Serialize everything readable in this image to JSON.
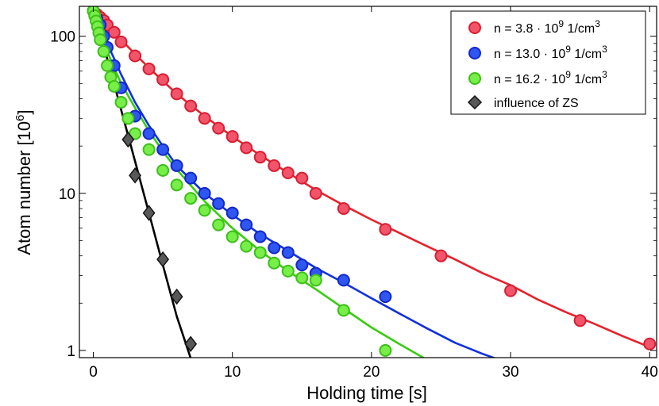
{
  "chart_data": {
    "type": "scatter",
    "title": "",
    "xlabel": "Holding time [s]",
    "ylabel": "Atom number [10",
    "ylabel_sup": "6",
    "ylabel_end": "]",
    "xlim": [
      -1,
      40.5
    ],
    "ylim": [
      0.9,
      155
    ],
    "yscale": "log",
    "grid": false,
    "legend_position": "top-right",
    "x_ticks": [
      0,
      10,
      20,
      30,
      40
    ],
    "x_tick_labels": [
      "0",
      "10",
      "20",
      "30",
      "40"
    ],
    "y_ticks": [
      1,
      10,
      100
    ],
    "y_tick_labels": [
      "1",
      "10",
      "100"
    ],
    "series": [
      {
        "name": "n = 3.8 · 10^9 1/cm^3",
        "legend_prefix": "n = 3.8 · 10",
        "legend_sup1": "9",
        "legend_mid": " 1/cm",
        "legend_sup2": "3",
        "marker": "circle",
        "fill": "#f2546a",
        "stroke": "#d81e33",
        "line_color": "#e8202a",
        "x": [
          0,
          0.25,
          0.5,
          0.75,
          1,
          1.5,
          2,
          3,
          4,
          5,
          6,
          7,
          8,
          9,
          10,
          11,
          12,
          13,
          14,
          15,
          16,
          18,
          21,
          25,
          30,
          35,
          40
        ],
        "y": [
          145,
          138,
          132,
          126,
          118,
          106,
          92,
          75,
          62,
          53,
          43,
          36,
          30,
          26,
          23,
          19.5,
          17,
          15,
          13.5,
          12.5,
          10,
          8,
          5.9,
          4,
          2.4,
          1.55,
          1.1
        ],
        "fit_x": [
          0,
          0.5,
          1,
          2,
          3,
          4,
          5,
          6,
          8,
          10,
          12,
          14,
          16,
          18,
          20,
          22,
          24,
          26,
          28,
          30,
          32,
          34,
          36,
          38,
          40
        ],
        "fit_y": [
          145,
          133,
          120,
          95,
          77,
          63,
          52,
          43,
          31,
          23,
          17.5,
          13.5,
          10.5,
          8.4,
          6.8,
          5.6,
          4.6,
          3.8,
          3.1,
          2.6,
          2.1,
          1.75,
          1.48,
          1.24,
          1.05
        ]
      },
      {
        "name": "n = 13.0 · 10^9 1/cm^3",
        "legend_prefix": "n = 13.0 · 10",
        "legend_sup1": "9",
        "legend_mid": " 1/cm",
        "legend_sup2": "3",
        "marker": "circle",
        "fill": "#2f56f0",
        "stroke": "#1428c8",
        "line_color": "#1030e0",
        "x": [
          0,
          0.25,
          0.5,
          0.75,
          1,
          1.5,
          2,
          3,
          4,
          5,
          6,
          7,
          8,
          9,
          10,
          11,
          12,
          13,
          14,
          15,
          16,
          18,
          21
        ],
        "y": [
          145,
          130,
          118,
          100,
          85,
          65,
          47,
          31,
          24,
          19,
          15,
          12.5,
          10,
          8.6,
          7.5,
          6.3,
          5.3,
          4.5,
          4.2,
          3.5,
          3.1,
          2.8,
          2.2
        ],
        "fit_x": [
          0,
          0.5,
          1,
          1.5,
          2,
          3,
          4,
          5,
          6,
          8,
          10,
          12,
          14,
          16,
          18,
          20,
          22,
          24,
          26,
          28,
          29.7
        ],
        "fit_y": [
          145,
          115,
          90,
          72,
          57,
          38,
          27,
          20,
          15,
          10,
          7.3,
          5.5,
          4.3,
          3.35,
          2.7,
          2.15,
          1.72,
          1.38,
          1.12,
          0.95,
          0.84
        ]
      },
      {
        "name": "n = 16.2 · 10^9 1/cm^3",
        "legend_prefix": "n = 16.2 · 10",
        "legend_sup1": "9",
        "legend_mid": " 1/cm",
        "legend_sup2": "3",
        "marker": "circle",
        "fill": "#78ee48",
        "stroke": "#3cc018",
        "line_color": "#38cc10",
        "x": [
          0,
          0.1,
          0.2,
          0.3,
          0.4,
          0.5,
          0.75,
          1,
          1.25,
          1.5,
          2,
          2.5,
          3,
          4,
          5,
          6,
          7,
          8,
          9,
          10,
          11,
          12,
          13,
          14,
          15,
          16,
          18,
          21
        ],
        "y": [
          145,
          135,
          125,
          115,
          105,
          95,
          80,
          65,
          55,
          48,
          38,
          30,
          24,
          19,
          14,
          11.3,
          9.3,
          7.8,
          6.3,
          5.3,
          4.6,
          4.2,
          3.6,
          3.2,
          2.9,
          2.8,
          1.8,
          1.0
        ],
        "fit_x": [
          0,
          0.25,
          0.5,
          1,
          1.5,
          2,
          3,
          4,
          5,
          6,
          8,
          10,
          12,
          14,
          16,
          18,
          20,
          22,
          24.3
        ],
        "fit_y": [
          145,
          123,
          106,
          80,
          63,
          50,
          35,
          25,
          18.5,
          14.2,
          8.9,
          6,
          4.3,
          3.2,
          2.45,
          1.85,
          1.4,
          1.1,
          0.84
        ]
      },
      {
        "name": "influence of ZS",
        "marker": "diamond",
        "fill": "#585858",
        "stroke": "#151515",
        "line_color": "#000000",
        "x": [
          2.5,
          3,
          4,
          5,
          6,
          7
        ],
        "y": [
          22,
          13,
          7.5,
          3.8,
          2.2,
          1.1
        ],
        "fit_x": [
          0,
          1,
          2,
          3,
          4,
          5,
          6,
          7.1
        ],
        "fit_y": [
          155,
          72,
          34,
          16,
          7.5,
          3.5,
          1.65,
          0.84
        ]
      }
    ]
  }
}
